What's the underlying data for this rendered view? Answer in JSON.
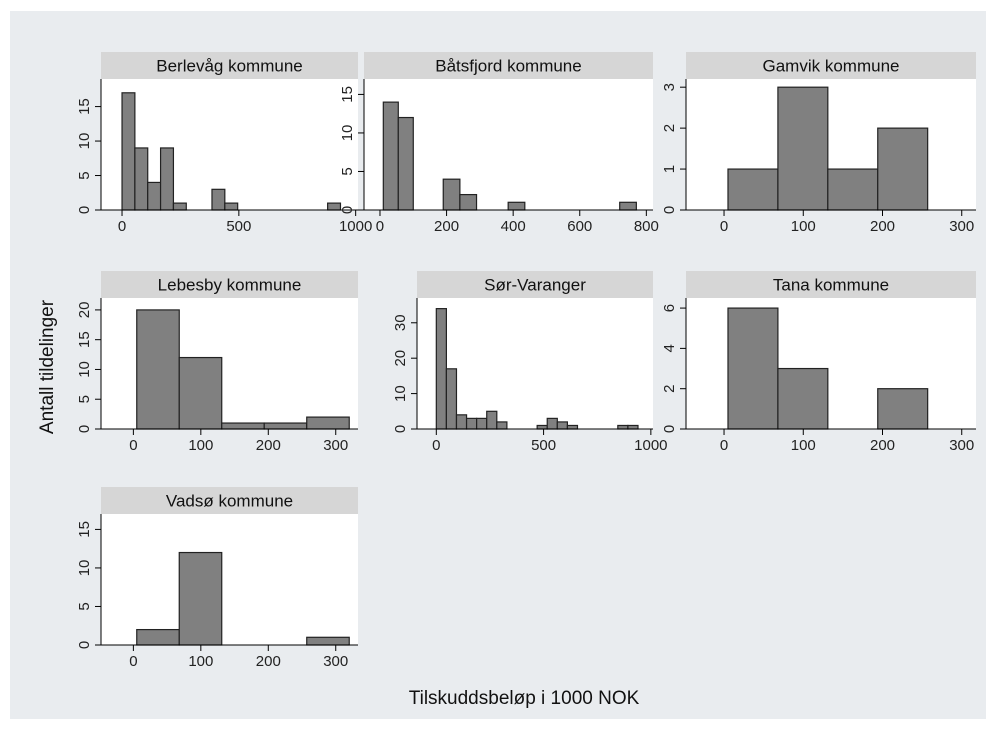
{
  "figure": {
    "ylabel": "Antall tildelinger",
    "xlabel": "Tilskuddsbeløp i 1000 NOK",
    "colors": {
      "background": "#e9ecef",
      "plot": "#ffffff",
      "header": "#d6d6d6",
      "bar": "#808080",
      "bar_edge": "#222222"
    }
  },
  "chart_data": [
    {
      "type": "bar",
      "title": "Berlevåg kommune",
      "xticks": [
        0,
        500,
        1000
      ],
      "yticks": [
        0,
        5,
        10,
        15
      ],
      "xlim": [
        -90,
        1010
      ],
      "ylim": [
        0,
        19
      ],
      "bin_width": 55,
      "bins": [
        {
          "x0": 0,
          "x1": 55,
          "value": 17
        },
        {
          "x0": 55,
          "x1": 110,
          "value": 9
        },
        {
          "x0": 110,
          "x1": 165,
          "value": 4
        },
        {
          "x0": 165,
          "x1": 220,
          "value": 9
        },
        {
          "x0": 220,
          "x1": 275,
          "value": 1
        },
        {
          "x0": 385,
          "x1": 440,
          "value": 3
        },
        {
          "x0": 440,
          "x1": 495,
          "value": 1
        },
        {
          "x0": 880,
          "x1": 935,
          "value": 1
        }
      ]
    },
    {
      "type": "bar",
      "title": "Båtsfjord kommune",
      "xticks": [
        0,
        200,
        400,
        600,
        800
      ],
      "yticks": [
        0,
        5,
        10,
        15
      ],
      "xlim": [
        -48,
        820
      ],
      "ylim": [
        0,
        17
      ],
      "bins": [
        {
          "x0": 10,
          "x1": 55,
          "value": 14
        },
        {
          "x0": 55,
          "x1": 100,
          "value": 12
        },
        {
          "x0": 190,
          "x1": 240,
          "value": 4
        },
        {
          "x0": 240,
          "x1": 290,
          "value": 2
        },
        {
          "x0": 385,
          "x1": 435,
          "value": 1
        },
        {
          "x0": 720,
          "x1": 770,
          "value": 1
        }
      ]
    },
    {
      "type": "bar",
      "title": "Gamvik kommune",
      "xticks": [
        0,
        100,
        200,
        300
      ],
      "yticks": [
        0,
        1,
        2,
        3
      ],
      "xlim": [
        -48,
        318
      ],
      "ylim": [
        0,
        3.2
      ],
      "bins": [
        {
          "x0": 5,
          "x1": 68,
          "value": 1
        },
        {
          "x0": 68,
          "x1": 131,
          "value": 3
        },
        {
          "x0": 131,
          "x1": 194,
          "value": 1
        },
        {
          "x0": 194,
          "x1": 257,
          "value": 2
        }
      ]
    },
    {
      "type": "bar",
      "title": "Lebesby kommune",
      "xticks": [
        0,
        100,
        200,
        300
      ],
      "yticks": [
        0,
        5,
        10,
        15,
        20
      ],
      "xlim": [
        -48,
        333
      ],
      "ylim": [
        0,
        22
      ],
      "bins": [
        {
          "x0": 5,
          "x1": 68,
          "value": 20
        },
        {
          "x0": 68,
          "x1": 131,
          "value": 12
        },
        {
          "x0": 131,
          "x1": 194,
          "value": 1
        },
        {
          "x0": 194,
          "x1": 257,
          "value": 1
        },
        {
          "x0": 257,
          "x1": 320,
          "value": 2
        }
      ]
    },
    {
      "type": "bar",
      "title": "Sør-Varanger",
      "xticks": [
        0,
        500,
        1000
      ],
      "yticks": [
        0,
        10,
        20,
        30
      ],
      "xlim": [
        -90,
        1010
      ],
      "ylim": [
        0,
        37
      ],
      "bins": [
        {
          "x0": 0,
          "x1": 47,
          "value": 34
        },
        {
          "x0": 47,
          "x1": 94,
          "value": 17
        },
        {
          "x0": 94,
          "x1": 141,
          "value": 4
        },
        {
          "x0": 141,
          "x1": 188,
          "value": 3
        },
        {
          "x0": 188,
          "x1": 235,
          "value": 3
        },
        {
          "x0": 235,
          "x1": 282,
          "value": 5
        },
        {
          "x0": 282,
          "x1": 329,
          "value": 2
        },
        {
          "x0": 470,
          "x1": 517,
          "value": 1
        },
        {
          "x0": 517,
          "x1": 564,
          "value": 3
        },
        {
          "x0": 564,
          "x1": 611,
          "value": 2
        },
        {
          "x0": 611,
          "x1": 658,
          "value": 1
        },
        {
          "x0": 846,
          "x1": 893,
          "value": 1
        },
        {
          "x0": 893,
          "x1": 940,
          "value": 1
        }
      ]
    },
    {
      "type": "bar",
      "title": "Tana kommune",
      "xticks": [
        0,
        100,
        200,
        300
      ],
      "yticks": [
        0,
        2,
        4,
        6
      ],
      "xlim": [
        -48,
        318
      ],
      "ylim": [
        0,
        6.5
      ],
      "bins": [
        {
          "x0": 5,
          "x1": 68,
          "value": 6
        },
        {
          "x0": 68,
          "x1": 131,
          "value": 3
        },
        {
          "x0": 194,
          "x1": 257,
          "value": 2
        }
      ]
    },
    {
      "type": "bar",
      "title": "Vadsø kommune",
      "xticks": [
        0,
        100,
        200,
        300
      ],
      "yticks": [
        0,
        5,
        10,
        15
      ],
      "xlim": [
        -48,
        333
      ],
      "ylim": [
        0,
        17
      ],
      "bins": [
        {
          "x0": 5,
          "x1": 68,
          "value": 2
        },
        {
          "x0": 68,
          "x1": 131,
          "value": 12
        },
        {
          "x0": 257,
          "x1": 320,
          "value": 1
        }
      ]
    }
  ]
}
